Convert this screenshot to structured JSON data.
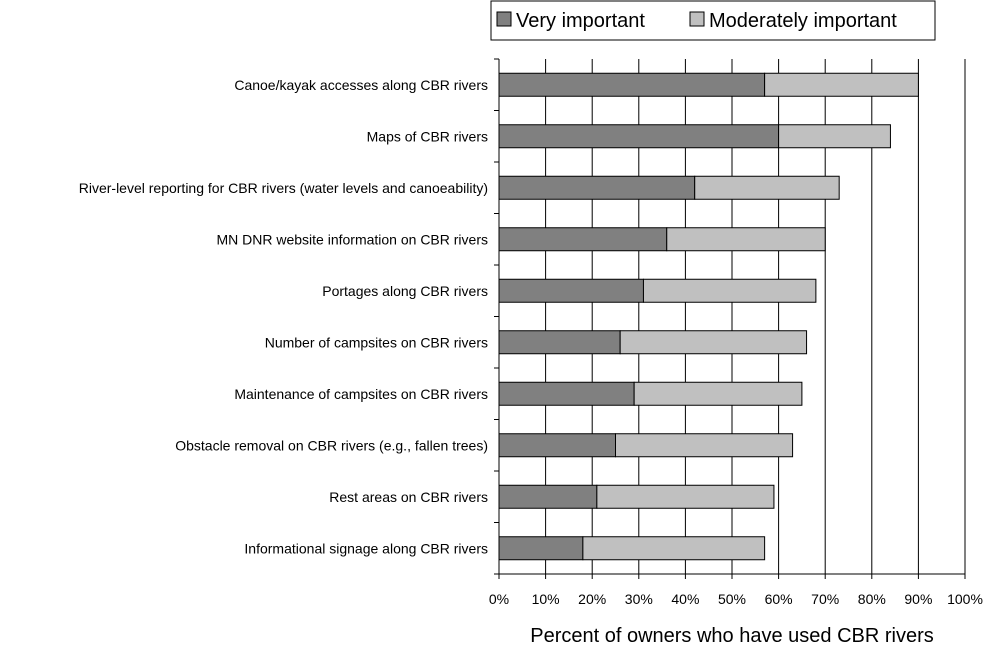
{
  "chart_data": {
    "type": "bar",
    "orientation": "horizontal",
    "stacked": true,
    "categories": [
      "Canoe/kayak accesses along CBR rivers",
      "Maps of CBR rivers",
      "River-level reporting for CBR rivers (water levels and canoeability)",
      "MN DNR website information on CBR rivers",
      "Portages along CBR rivers",
      "Number of campsites on CBR rivers",
      "Maintenance of campsites on CBR rivers",
      "Obstacle removal on CBR rivers (e.g., fallen trees)",
      "Rest areas on CBR rivers",
      "Informational signage along CBR rivers"
    ],
    "series": [
      {
        "name": "Very important",
        "color": "#808080",
        "values": [
          57,
          60,
          42,
          36,
          31,
          26,
          29,
          25,
          21,
          18
        ]
      },
      {
        "name": "Moderately important",
        "color": "#c0c0c0",
        "values": [
          33,
          24,
          31,
          34,
          37,
          40,
          36,
          38,
          38,
          39
        ]
      }
    ],
    "xlabel": "Percent of owners who have used CBR rivers",
    "ylabel": "",
    "xlim": [
      0,
      100
    ],
    "xticks": [
      "0%",
      "10%",
      "20%",
      "30%",
      "40%",
      "50%",
      "60%",
      "70%",
      "80%",
      "90%",
      "100%"
    ],
    "grid": "vertical",
    "legend": "top-right"
  }
}
